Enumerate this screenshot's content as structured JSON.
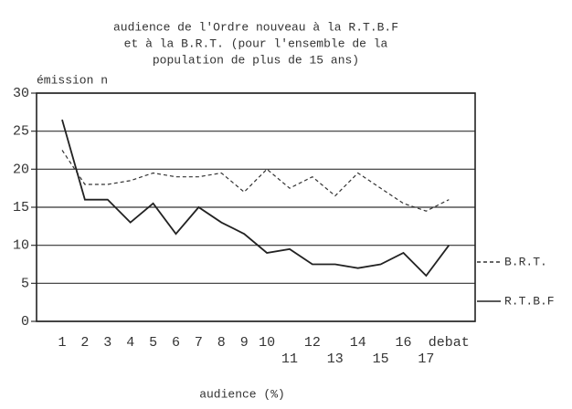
{
  "chart_data": {
    "type": "line",
    "title": [
      "audience de l'Ordre nouveau à la R.T.B.F",
      "et à la B.R.T. (pour l'ensemble de la",
      "population de plus de 15 ans)"
    ],
    "y_label": "émission n",
    "x_label": "audience (%)",
    "categories": [
      "1",
      "2",
      "3",
      "4",
      "5",
      "6",
      "7",
      "8",
      "9",
      "10",
      "11",
      "12",
      "13",
      "14",
      "15",
      "16",
      "17",
      "debat"
    ],
    "series": [
      {
        "name": "B.R.T.",
        "color": "#333333",
        "style": "dashed",
        "values": [
          22.5,
          18,
          18,
          18.5,
          19.5,
          19,
          19,
          19.5,
          17,
          20,
          17.5,
          19,
          16.5,
          19.5,
          17.5,
          15.5,
          14.5,
          16
        ]
      },
      {
        "name": "R.T.B.F",
        "color": "#222222",
        "style": "solid",
        "values": [
          26.5,
          16,
          16,
          13,
          15.5,
          11.5,
          15,
          13,
          11.5,
          9,
          9.5,
          7.5,
          7.5,
          7,
          7.5,
          9,
          6,
          10
        ]
      }
    ],
    "ylim": [
      0,
      30
    ],
    "yticks": [
      0,
      5,
      10,
      15,
      20,
      25,
      30
    ],
    "grid": true
  }
}
